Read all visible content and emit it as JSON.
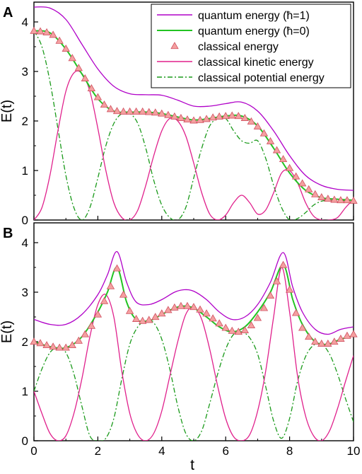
{
  "colors": {
    "quantum_hbar1": "#b000c8",
    "quantum_hbar0": "#22c422",
    "classical_energy_marker": "#f4a0a0",
    "classical_energy_edge": "#d05060",
    "kinetic": "#e0208c",
    "potential": "#1a9a1a"
  },
  "xlabel": "t",
  "legend": [
    {
      "label": "quantum energy (ħ=1)",
      "style": "line",
      "color_key": "quantum_hbar1"
    },
    {
      "label": "quantum energy (ħ=0)",
      "style": "line",
      "color_key": "quantum_hbar0"
    },
    {
      "label": "classical energy",
      "style": "triangle",
      "color_key": "classical_energy_marker"
    },
    {
      "label": "classical kinetic energy",
      "style": "line",
      "color_key": "kinetic"
    },
    {
      "label": "classical potential energy",
      "style": "dashdot",
      "color_key": "potential"
    }
  ],
  "chart_data": [
    {
      "type": "line",
      "panel_label": "A",
      "ylabel": "E(t)",
      "xlim": [
        0,
        10
      ],
      "ylim": [
        0,
        4.4
      ],
      "xticks": [
        0,
        2,
        4,
        6,
        8,
        10
      ],
      "yticks": [
        0,
        1,
        2,
        3,
        4
      ],
      "legend_position": "top-right",
      "series": [
        {
          "name": "quantum energy (ħ=1)",
          "color_key": "quantum_hbar1",
          "style": "solid",
          "x": [
            0,
            0.5,
            1.0,
            1.5,
            2.0,
            2.5,
            3.0,
            3.5,
            4.0,
            4.5,
            5.0,
            5.5,
            6.0,
            6.5,
            7.0,
            7.5,
            8.0,
            8.5,
            9.0,
            9.5,
            10.0
          ],
          "y": [
            4.3,
            4.28,
            4.05,
            3.55,
            3.05,
            2.7,
            2.55,
            2.53,
            2.52,
            2.42,
            2.3,
            2.3,
            2.35,
            2.38,
            2.2,
            1.8,
            1.3,
            0.9,
            0.7,
            0.62,
            0.6
          ]
        },
        {
          "name": "quantum energy (ħ=0)",
          "color_key": "quantum_hbar0",
          "style": "solid",
          "x": [
            0,
            0.5,
            1.0,
            1.5,
            2.0,
            2.5,
            3.0,
            3.5,
            4.0,
            4.5,
            5.0,
            5.5,
            6.0,
            6.5,
            7.0,
            7.5,
            8.0,
            8.5,
            9.0,
            9.5,
            10.0
          ],
          "y": [
            3.82,
            3.78,
            3.45,
            2.95,
            2.45,
            2.2,
            2.18,
            2.18,
            2.15,
            2.08,
            2.02,
            2.05,
            2.1,
            2.1,
            1.9,
            1.45,
            0.95,
            0.6,
            0.45,
            0.42,
            0.4
          ]
        },
        {
          "name": "classical energy",
          "color_key": "classical_energy_marker",
          "style": "triangle",
          "x": [
            0,
            0.2,
            0.4,
            0.6,
            0.8,
            1.0,
            1.2,
            1.4,
            1.6,
            1.8,
            2.0,
            2.2,
            2.4,
            2.6,
            2.8,
            3.0,
            3.2,
            3.4,
            3.6,
            3.8,
            4.0,
            4.2,
            4.4,
            4.6,
            4.8,
            5.0,
            5.2,
            5.4,
            5.6,
            5.8,
            6.0,
            6.2,
            6.4,
            6.6,
            6.8,
            7.0,
            7.2,
            7.4,
            7.6,
            7.8,
            8.0,
            8.2,
            8.4,
            8.6,
            8.8,
            9.0,
            9.2,
            9.4,
            9.6,
            9.8,
            10.0
          ],
          "y": [
            3.82,
            3.81,
            3.79,
            3.74,
            3.62,
            3.46,
            3.27,
            3.07,
            2.86,
            2.66,
            2.48,
            2.33,
            2.24,
            2.2,
            2.19,
            2.19,
            2.19,
            2.19,
            2.18,
            2.17,
            2.15,
            2.12,
            2.09,
            2.06,
            2.03,
            2.01,
            2.02,
            2.04,
            2.07,
            2.09,
            2.1,
            2.11,
            2.1,
            2.06,
            1.99,
            1.89,
            1.75,
            1.59,
            1.41,
            1.23,
            1.05,
            0.88,
            0.74,
            0.62,
            0.52,
            0.46,
            0.43,
            0.41,
            0.4,
            0.4,
            0.39
          ]
        },
        {
          "name": "classical kinetic energy",
          "color_key": "kinetic",
          "style": "solid",
          "x": [
            0,
            0.25,
            0.5,
            0.75,
            1.0,
            1.25,
            1.5,
            1.75,
            2.0,
            2.25,
            2.5,
            2.75,
            3.0,
            3.25,
            3.5,
            3.75,
            4.0,
            4.25,
            4.5,
            4.75,
            5.0,
            5.25,
            5.5,
            5.75,
            6.0,
            6.25,
            6.5,
            6.75,
            7.0,
            7.25,
            7.5,
            7.75,
            8.0,
            8.25,
            8.5,
            8.75,
            9.0,
            9.25,
            9.5,
            9.75,
            10.0
          ],
          "y": [
            0,
            0.25,
            0.9,
            1.8,
            2.6,
            2.97,
            2.96,
            2.6,
            1.85,
            1.0,
            0.35,
            0.05,
            0.0,
            0.2,
            0.7,
            1.3,
            1.8,
            2.05,
            2.0,
            1.7,
            1.15,
            0.55,
            0.12,
            0.0,
            0.1,
            0.35,
            0.5,
            0.35,
            0.12,
            0.2,
            0.55,
            0.95,
            1.0,
            0.75,
            0.35,
            0.08,
            0.0,
            0.0,
            0.05,
            0.25,
            0.42
          ]
        },
        {
          "name": "classical potential energy",
          "color_key": "potential",
          "style": "dashdot",
          "x": [
            0,
            0.25,
            0.5,
            0.75,
            1.0,
            1.25,
            1.5,
            1.75,
            2.0,
            2.25,
            2.5,
            2.75,
            3.0,
            3.25,
            3.5,
            3.75,
            4.0,
            4.25,
            4.5,
            4.75,
            5.0,
            5.25,
            5.5,
            5.75,
            6.0,
            6.25,
            6.5,
            6.75,
            7.0,
            7.25,
            7.5,
            7.75,
            8.0,
            8.25,
            8.5,
            8.75,
            9.0,
            9.25,
            9.5,
            9.75,
            10.0
          ],
          "y": [
            3.82,
            3.5,
            2.8,
            1.85,
            0.9,
            0.25,
            0.0,
            0.25,
            0.85,
            1.5,
            1.95,
            2.15,
            2.15,
            1.95,
            1.45,
            0.8,
            0.3,
            0.05,
            0.0,
            0.25,
            0.85,
            1.45,
            1.9,
            2.05,
            2.05,
            1.8,
            1.6,
            1.55,
            1.6,
            1.25,
            0.7,
            0.25,
            0.0,
            0.03,
            0.15,
            0.3,
            0.38,
            0.4,
            0.4,
            0.39,
            0.38
          ]
        }
      ]
    },
    {
      "type": "line",
      "panel_label": "B",
      "ylabel": "E(t)",
      "xlim": [
        0,
        10
      ],
      "ylim": [
        0,
        4.4
      ],
      "xticks": [
        0,
        2,
        4,
        6,
        8,
        10
      ],
      "yticks": [
        0,
        1,
        2,
        3,
        4
      ],
      "series": [
        {
          "name": "quantum energy (ħ=1)",
          "color_key": "quantum_hbar1",
          "style": "solid",
          "x": [
            0,
            0.5,
            1.0,
            1.5,
            2.0,
            2.3,
            2.6,
            2.9,
            3.2,
            3.6,
            4.0,
            4.4,
            4.7,
            5.0,
            5.4,
            5.8,
            6.2,
            6.6,
            7.0,
            7.4,
            7.8,
            8.1,
            8.4,
            8.8,
            9.2,
            9.6,
            10.0
          ],
          "y": [
            2.45,
            2.35,
            2.35,
            2.55,
            2.95,
            3.35,
            3.82,
            3.2,
            2.8,
            2.75,
            2.85,
            3.0,
            3.05,
            3.02,
            2.85,
            2.6,
            2.45,
            2.5,
            2.75,
            3.2,
            3.8,
            3.1,
            2.6,
            2.25,
            2.15,
            2.25,
            2.3
          ]
        },
        {
          "name": "quantum energy (ħ=0)",
          "color_key": "quantum_hbar0",
          "style": "solid",
          "x": [
            0,
            0.5,
            1.0,
            1.5,
            2.0,
            2.3,
            2.6,
            2.9,
            3.2,
            3.6,
            4.0,
            4.4,
            4.7,
            5.0,
            5.4,
            5.8,
            6.2,
            6.6,
            7.0,
            7.4,
            7.8,
            8.1,
            8.4,
            8.8,
            9.2,
            9.6,
            10.0
          ],
          "y": [
            2.0,
            1.9,
            1.88,
            2.1,
            2.6,
            3.0,
            3.5,
            2.8,
            2.45,
            2.42,
            2.55,
            2.68,
            2.72,
            2.68,
            2.5,
            2.3,
            2.2,
            2.3,
            2.6,
            3.0,
            3.55,
            2.85,
            2.35,
            2.0,
            1.95,
            2.05,
            2.12
          ]
        },
        {
          "name": "classical energy",
          "color_key": "classical_energy_marker",
          "style": "triangle",
          "x": [
            0,
            0.2,
            0.4,
            0.6,
            0.8,
            1.0,
            1.2,
            1.4,
            1.6,
            1.8,
            2.0,
            2.2,
            2.4,
            2.6,
            2.8,
            3.0,
            3.2,
            3.4,
            3.6,
            3.8,
            4.0,
            4.2,
            4.4,
            4.6,
            4.8,
            5.0,
            5.2,
            5.4,
            5.6,
            5.8,
            6.0,
            6.2,
            6.4,
            6.6,
            6.8,
            7.0,
            7.2,
            7.4,
            7.6,
            7.8,
            8.0,
            8.2,
            8.4,
            8.6,
            8.8,
            9.0,
            9.2,
            9.4,
            9.6,
            9.8,
            10.0
          ],
          "y": [
            2.0,
            1.97,
            1.93,
            1.9,
            1.88,
            1.88,
            1.93,
            2.02,
            2.15,
            2.32,
            2.55,
            2.82,
            3.12,
            3.48,
            2.95,
            2.62,
            2.46,
            2.42,
            2.44,
            2.5,
            2.57,
            2.64,
            2.69,
            2.72,
            2.72,
            2.7,
            2.65,
            2.57,
            2.47,
            2.37,
            2.28,
            2.22,
            2.2,
            2.23,
            2.33,
            2.48,
            2.68,
            2.93,
            3.22,
            3.55,
            3.05,
            2.58,
            2.28,
            2.1,
            2.0,
            1.96,
            1.96,
            2.0,
            2.06,
            2.12,
            2.15
          ]
        },
        {
          "name": "classical kinetic energy",
          "color_key": "kinetic",
          "style": "solid",
          "x": [
            0,
            0.25,
            0.5,
            0.75,
            1.0,
            1.25,
            1.5,
            1.75,
            2.0,
            2.25,
            2.5,
            2.75,
            3.0,
            3.25,
            3.5,
            3.75,
            4.0,
            4.25,
            4.5,
            4.75,
            5.0,
            5.25,
            5.5,
            5.75,
            6.0,
            6.25,
            6.5,
            6.75,
            7.0,
            7.25,
            7.5,
            7.75,
            8.0,
            8.25,
            8.5,
            8.75,
            9.0,
            9.25,
            9.5,
            9.75,
            10.0
          ],
          "y": [
            1.0,
            0.55,
            0.15,
            0.0,
            0.1,
            0.55,
            1.25,
            2.1,
            2.75,
            2.95,
            2.5,
            1.4,
            0.55,
            0.12,
            0.0,
            0.15,
            0.6,
            1.3,
            2.0,
            2.55,
            2.7,
            2.45,
            1.85,
            1.1,
            0.45,
            0.08,
            0.0,
            0.12,
            0.6,
            1.4,
            2.5,
            3.5,
            2.6,
            1.3,
            0.5,
            0.1,
            0.0,
            0.2,
            0.65,
            1.2,
            1.72
          ]
        },
        {
          "name": "classical potential energy",
          "color_key": "potential",
          "style": "dashdot",
          "x": [
            0,
            0.25,
            0.5,
            0.75,
            1.0,
            1.25,
            1.5,
            1.75,
            2.0,
            2.25,
            2.5,
            2.75,
            3.0,
            3.25,
            3.5,
            3.75,
            4.0,
            4.25,
            4.5,
            4.75,
            5.0,
            5.25,
            5.5,
            5.75,
            6.0,
            6.25,
            6.5,
            6.75,
            7.0,
            7.25,
            7.5,
            7.75,
            8.0,
            8.25,
            8.5,
            8.75,
            9.0,
            9.25,
            9.5,
            9.75,
            10.0
          ],
          "y": [
            1.0,
            1.45,
            1.78,
            1.88,
            1.78,
            1.35,
            0.7,
            0.1,
            0.0,
            0.05,
            0.45,
            1.25,
            1.95,
            2.3,
            2.42,
            2.38,
            2.05,
            1.45,
            0.7,
            0.15,
            0.0,
            0.2,
            0.75,
            1.35,
            1.85,
            2.15,
            2.2,
            2.08,
            1.75,
            1.1,
            0.4,
            0.05,
            0.45,
            1.2,
            1.7,
            1.93,
            1.95,
            1.75,
            1.35,
            0.85,
            0.38
          ]
        }
      ]
    }
  ]
}
